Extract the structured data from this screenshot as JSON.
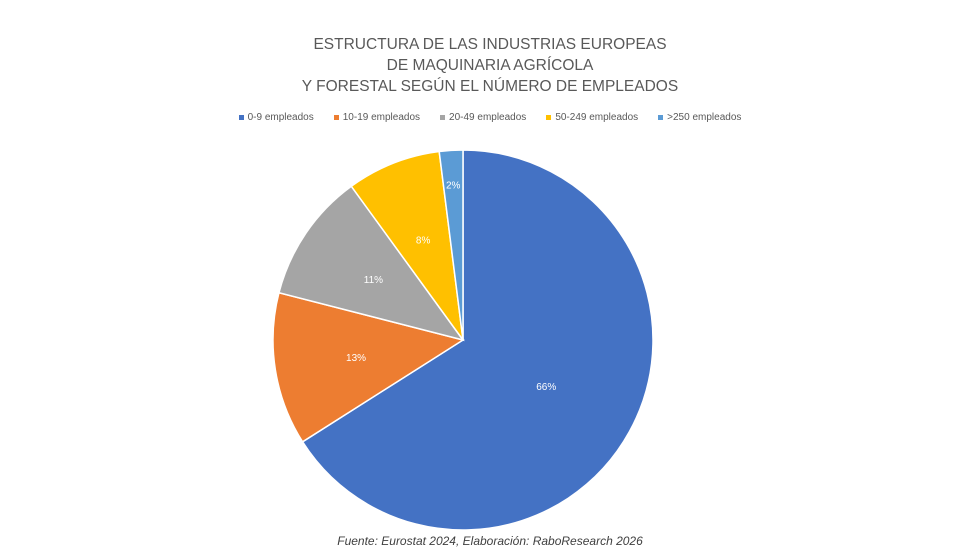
{
  "chart_data": {
    "type": "pie",
    "title_lines": [
      "ESTRUCTURA DE LAS INDUSTRIAS EUROPEAS",
      "DE MAQUINARIA AGRÍCOLA",
      "Y FORESTAL SEGÚN EL NÚMERO DE EMPLEADOS"
    ],
    "categories": [
      "0-9 empleados",
      "10-19 empleados",
      "20-49 empleados",
      "50-249 empleados",
      ">250 empleados"
    ],
    "values": [
      66,
      13,
      11,
      8,
      2
    ],
    "data_labels": [
      "66%",
      "13%",
      "11%",
      "8%",
      "2%"
    ],
    "colors": [
      "#4472C4",
      "#ED7D31",
      "#A5A5A5",
      "#FFC000",
      "#5B9BD5"
    ],
    "legend_position": "top",
    "source": "Fuente: Eurostat 2024, Elaboración: RaboResearch 2026"
  }
}
